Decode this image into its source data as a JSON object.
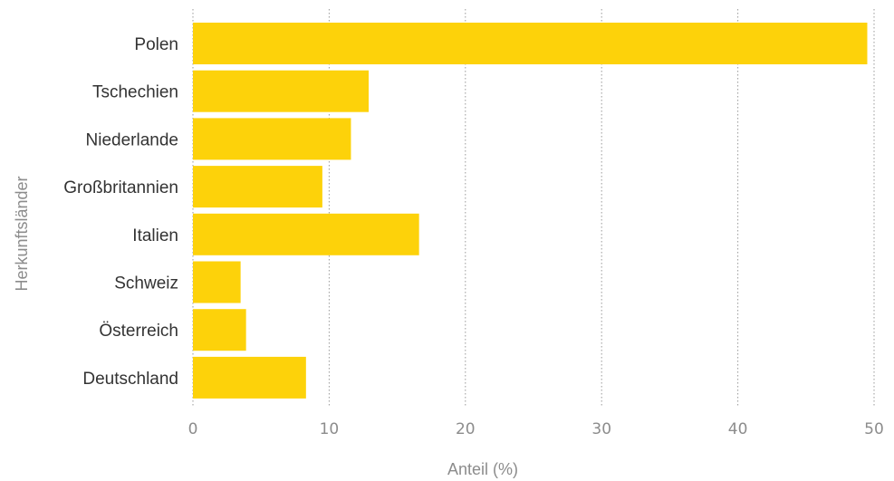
{
  "chart_data": {
    "type": "bar",
    "orientation": "horizontal",
    "categories": [
      "Polen",
      "Tschechien",
      "Niederlande",
      "Großbritannien",
      "Italien",
      "Schweiz",
      "Österreich",
      "Deutschland"
    ],
    "values": [
      49.5,
      12.9,
      11.6,
      9.5,
      16.6,
      3.5,
      3.9,
      8.3
    ],
    "xlabel": "Anteil (%)",
    "ylabel": "Herkunftsländer",
    "xlim": [
      0,
      50
    ],
    "xticks": [
      "0",
      "10",
      "20",
      "30",
      "40",
      "50"
    ],
    "grid": "vertical dotted",
    "bar_color": "#fdd20a",
    "grid_color": "#9a9a9a",
    "label_color": "#333333",
    "axis_text_color": "#8c8c8c"
  }
}
